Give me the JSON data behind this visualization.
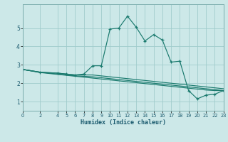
{
  "xlabel": "Humidex (Indice chaleur)",
  "bg_color": "#cce8e8",
  "grid_color": "#a0cccc",
  "line_color": "#1a7a6e",
  "x_ticks": [
    0,
    2,
    4,
    5,
    6,
    7,
    8,
    9,
    10,
    11,
    12,
    13,
    14,
    15,
    16,
    17,
    18,
    19,
    20,
    21,
    22,
    23
  ],
  "xlim": [
    0,
    23
  ],
  "ylim": [
    0.5,
    6.3
  ],
  "y_ticks": [
    1,
    2,
    3,
    4,
    5
  ],
  "lines": [
    {
      "has_markers": true,
      "x": [
        0,
        2,
        4,
        5,
        6,
        7,
        8,
        9,
        10,
        11,
        12,
        13,
        14,
        15,
        16,
        17,
        18,
        19,
        20,
        21,
        22,
        23
      ],
      "y": [
        2.75,
        2.6,
        2.55,
        2.5,
        2.45,
        2.5,
        2.95,
        2.95,
        4.95,
        5.0,
        5.65,
        5.05,
        4.3,
        4.65,
        4.35,
        3.15,
        3.2,
        1.6,
        1.15,
        1.35,
        1.4,
        1.6
      ]
    },
    {
      "has_markers": false,
      "x": [
        0,
        2,
        4,
        5,
        6,
        7,
        8,
        9,
        10,
        11,
        12,
        13,
        14,
        15,
        16,
        17,
        18,
        19,
        20,
        21,
        22,
        23
      ],
      "y": [
        2.75,
        2.6,
        2.55,
        2.5,
        2.45,
        2.45,
        2.45,
        2.4,
        2.35,
        2.3,
        2.25,
        2.2,
        2.15,
        2.1,
        2.05,
        2.0,
        1.95,
        1.9,
        1.85,
        1.8,
        1.75,
        1.7
      ]
    },
    {
      "has_markers": false,
      "x": [
        0,
        2,
        4,
        5,
        6,
        7,
        8,
        9,
        10,
        11,
        12,
        13,
        14,
        15,
        16,
        17,
        18,
        19,
        20,
        21,
        22,
        23
      ],
      "y": [
        2.75,
        2.6,
        2.5,
        2.45,
        2.4,
        2.38,
        2.35,
        2.3,
        2.25,
        2.2,
        2.15,
        2.1,
        2.05,
        2.0,
        1.95,
        1.9,
        1.85,
        1.8,
        1.75,
        1.7,
        1.65,
        1.6
      ]
    },
    {
      "has_markers": false,
      "x": [
        0,
        2,
        4,
        5,
        6,
        7,
        8,
        9,
        10,
        11,
        12,
        13,
        14,
        15,
        16,
        17,
        18,
        19,
        20,
        21,
        22,
        23
      ],
      "y": [
        2.75,
        2.58,
        2.48,
        2.43,
        2.38,
        2.33,
        2.28,
        2.23,
        2.18,
        2.13,
        2.08,
        2.03,
        1.98,
        1.93,
        1.88,
        1.83,
        1.78,
        1.73,
        1.68,
        1.63,
        1.6,
        1.6
      ]
    }
  ]
}
